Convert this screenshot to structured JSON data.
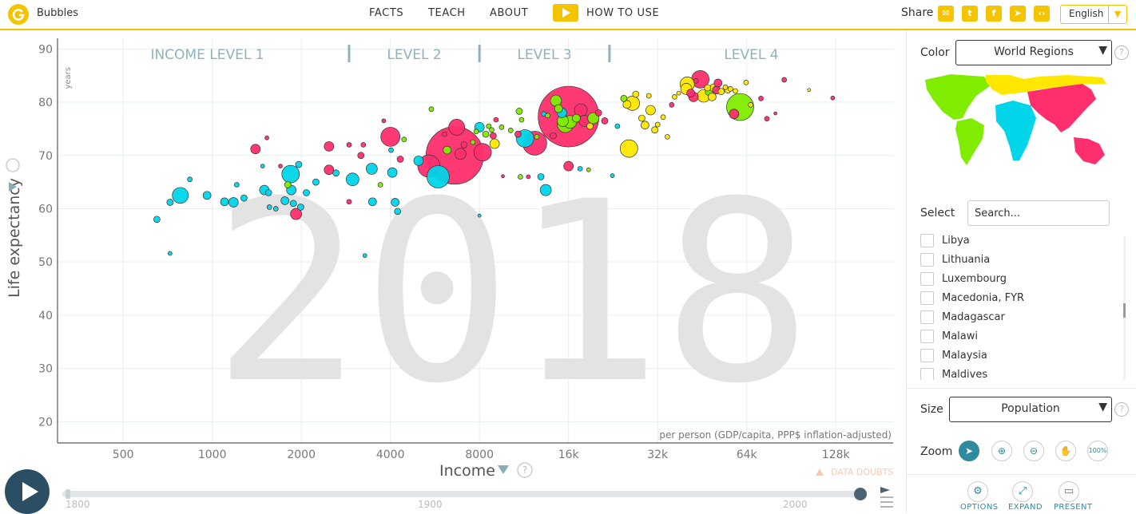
{
  "header": {
    "brand": "Bubbles",
    "nav": [
      "FACTS",
      "TEACH",
      "ABOUT"
    ],
    "how_to_use": "HOW TO USE",
    "share_label": "Share",
    "share_icons": [
      "mail-icon",
      "twitter-icon",
      "facebook-icon",
      "telegram-icon",
      "embed-icon"
    ],
    "language": "English"
  },
  "chart_data": {
    "type": "scatter",
    "year_watermark": "2018",
    "xlabel": "Income",
    "x_unit_note": "per person (GDP/capita, PPP$ inflation-adjusted)",
    "ylabel": "Life expectancy",
    "y_unit": "years",
    "x_scale": "log",
    "x_ticks": [
      500,
      1000,
      2000,
      4000,
      8000,
      16000,
      32000,
      64000,
      128000
    ],
    "x_tick_labels": [
      "500",
      "1000",
      "2000",
      "4000",
      "8000",
      "16k",
      "32k",
      "64k",
      "128k"
    ],
    "xlim": [
      300,
      200000
    ],
    "y_ticks": [
      20,
      30,
      40,
      50,
      60,
      70,
      80,
      90
    ],
    "ylim": [
      16,
      92
    ],
    "grid": true,
    "income_levels": [
      "INCOME LEVEL 1",
      "LEVEL 2",
      "LEVEL 3",
      "LEVEL 4"
    ],
    "income_level_bounds": [
      2900,
      8000,
      22000
    ],
    "region_colors": {
      "africa": "#00d5e9",
      "asia": "#ff2e6d",
      "americas": "#7fec00",
      "europe": "#ffe700"
    },
    "points": [
      {
        "x": 650,
        "y": 58,
        "r": 4,
        "c": "africa"
      },
      {
        "x": 720,
        "y": 51.6,
        "r": 2.5,
        "c": "africa"
      },
      {
        "x": 720,
        "y": 61.2,
        "r": 4,
        "c": "africa"
      },
      {
        "x": 780,
        "y": 62.5,
        "r": 10,
        "c": "africa"
      },
      {
        "x": 840,
        "y": 65.5,
        "r": 3,
        "c": "africa"
      },
      {
        "x": 960,
        "y": 62.5,
        "r": 5,
        "c": "africa"
      },
      {
        "x": 1100,
        "y": 61.3,
        "r": 5,
        "c": "africa"
      },
      {
        "x": 1180,
        "y": 61.2,
        "r": 6,
        "c": "africa"
      },
      {
        "x": 1210,
        "y": 64.5,
        "r": 3,
        "c": "africa"
      },
      {
        "x": 1280,
        "y": 62,
        "r": 4,
        "c": "africa"
      },
      {
        "x": 1400,
        "y": 71.2,
        "r": 6,
        "c": "asia"
      },
      {
        "x": 1480,
        "y": 68,
        "r": 2.5,
        "c": "africa"
      },
      {
        "x": 1500,
        "y": 63.5,
        "r": 6,
        "c": "africa"
      },
      {
        "x": 1530,
        "y": 73.3,
        "r": 2.5,
        "c": "asia"
      },
      {
        "x": 1550,
        "y": 63,
        "r": 4,
        "c": "africa"
      },
      {
        "x": 1560,
        "y": 60.3,
        "r": 3,
        "c": "africa"
      },
      {
        "x": 1640,
        "y": 60,
        "r": 3,
        "c": "africa"
      },
      {
        "x": 1700,
        "y": 68,
        "r": 2.5,
        "c": "asia"
      },
      {
        "x": 1760,
        "y": 61.5,
        "r": 5,
        "c": "africa"
      },
      {
        "x": 1800,
        "y": 64.5,
        "r": 4,
        "c": "americas"
      },
      {
        "x": 1840,
        "y": 66.5,
        "r": 11,
        "c": "africa"
      },
      {
        "x": 1850,
        "y": 63.5,
        "r": 6,
        "c": "africa"
      },
      {
        "x": 1880,
        "y": 61,
        "r": 4,
        "c": "africa"
      },
      {
        "x": 1920,
        "y": 59,
        "r": 7,
        "c": "asia"
      },
      {
        "x": 1960,
        "y": 68.3,
        "r": 4,
        "c": "africa"
      },
      {
        "x": 1990,
        "y": 60.3,
        "r": 4,
        "c": "africa"
      },
      {
        "x": 2080,
        "y": 63,
        "r": 4,
        "c": "africa"
      },
      {
        "x": 2240,
        "y": 65,
        "r": 4,
        "c": "africa"
      },
      {
        "x": 2480,
        "y": 71.7,
        "r": 6,
        "c": "asia"
      },
      {
        "x": 2480,
        "y": 67.3,
        "r": 6,
        "c": "asia"
      },
      {
        "x": 2620,
        "y": 66.7,
        "r": 4,
        "c": "africa"
      },
      {
        "x": 2900,
        "y": 72,
        "r": 3,
        "c": "asia"
      },
      {
        "x": 2900,
        "y": 61.3,
        "r": 3,
        "c": "asia"
      },
      {
        "x": 2980,
        "y": 65.5,
        "r": 8,
        "c": "africa"
      },
      {
        "x": 3180,
        "y": 70,
        "r": 4,
        "c": "asia"
      },
      {
        "x": 3240,
        "y": 72,
        "r": 3,
        "c": "asia"
      },
      {
        "x": 3280,
        "y": 51.2,
        "r": 2.5,
        "c": "africa"
      },
      {
        "x": 3460,
        "y": 67.5,
        "r": 7,
        "c": "africa"
      },
      {
        "x": 3480,
        "y": 61.3,
        "r": 5,
        "c": "africa"
      },
      {
        "x": 3700,
        "y": 64.5,
        "r": 3,
        "c": "americas"
      },
      {
        "x": 3800,
        "y": 76.5,
        "r": 2.5,
        "c": "asia"
      },
      {
        "x": 4000,
        "y": 73.5,
        "r": 12,
        "c": "asia"
      },
      {
        "x": 4020,
        "y": 71,
        "r": 3,
        "c": "africa"
      },
      {
        "x": 4060,
        "y": 66.8,
        "r": 6,
        "c": "africa"
      },
      {
        "x": 4150,
        "y": 61.2,
        "r": 5,
        "c": "africa"
      },
      {
        "x": 4230,
        "y": 59.5,
        "r": 4,
        "c": "africa"
      },
      {
        "x": 4320,
        "y": 69.3,
        "r": 4,
        "c": "asia"
      },
      {
        "x": 4450,
        "y": 73,
        "r": 3,
        "c": "americas"
      },
      {
        "x": 4980,
        "y": 69,
        "r": 6,
        "c": "africa"
      },
      {
        "x": 5400,
        "y": 68,
        "r": 14,
        "c": "asia"
      },
      {
        "x": 5500,
        "y": 78.7,
        "r": 3,
        "c": "americas"
      },
      {
        "x": 5800,
        "y": 66,
        "r": 14,
        "c": "africa"
      },
      {
        "x": 6100,
        "y": 74,
        "r": 3,
        "c": "asia"
      },
      {
        "x": 6220,
        "y": 71,
        "r": 5,
        "c": "americas"
      },
      {
        "x": 6600,
        "y": 70,
        "r": 36,
        "c": "asia"
      },
      {
        "x": 6700,
        "y": 75.3,
        "r": 10,
        "c": "asia"
      },
      {
        "x": 6900,
        "y": 70.3,
        "r": 7,
        "c": "asia"
      },
      {
        "x": 7100,
        "y": 72,
        "r": 4,
        "c": "asia"
      },
      {
        "x": 7600,
        "y": 72.5,
        "r": 3,
        "c": "americas"
      },
      {
        "x": 7800,
        "y": 74.5,
        "r": 3,
        "c": "americas"
      },
      {
        "x": 8000,
        "y": 75.3,
        "r": 6,
        "c": "africa"
      },
      {
        "x": 8000,
        "y": 58.7,
        "r": 2,
        "c": "africa"
      },
      {
        "x": 8200,
        "y": 70.6,
        "r": 11,
        "c": "asia"
      },
      {
        "x": 8400,
        "y": 74,
        "r": 4,
        "c": "americas"
      },
      {
        "x": 8600,
        "y": 75.5,
        "r": 3,
        "c": "americas"
      },
      {
        "x": 8800,
        "y": 74.8,
        "r": 3,
        "c": "americas"
      },
      {
        "x": 8900,
        "y": 73.7,
        "r": 4,
        "c": "asia"
      },
      {
        "x": 9000,
        "y": 72.2,
        "r": 6,
        "c": "europe"
      },
      {
        "x": 9100,
        "y": 76.7,
        "r": 3,
        "c": "asia"
      },
      {
        "x": 9500,
        "y": 75.3,
        "r": 3,
        "c": "americas"
      },
      {
        "x": 9600,
        "y": 66.1,
        "r": 2,
        "c": "asia"
      },
      {
        "x": 10200,
        "y": 74.7,
        "r": 3,
        "c": "americas"
      },
      {
        "x": 10800,
        "y": 74,
        "r": 4,
        "c": "asia"
      },
      {
        "x": 10900,
        "y": 78.3,
        "r": 4,
        "c": "americas"
      },
      {
        "x": 11000,
        "y": 66,
        "r": 3,
        "c": "americas"
      },
      {
        "x": 11100,
        "y": 76.7,
        "r": 3,
        "c": "americas"
      },
      {
        "x": 11400,
        "y": 73.2,
        "r": 11,
        "c": "africa"
      },
      {
        "x": 11700,
        "y": 66,
        "r": 2.5,
        "c": "asia"
      },
      {
        "x": 12300,
        "y": 72.3,
        "r": 15,
        "c": "asia"
      },
      {
        "x": 12500,
        "y": 73.5,
        "r": 3,
        "c": "americas"
      },
      {
        "x": 12900,
        "y": 66,
        "r": 4,
        "c": "africa"
      },
      {
        "x": 13200,
        "y": 77.8,
        "r": 3,
        "c": "africa"
      },
      {
        "x": 13400,
        "y": 63.5,
        "r": 7,
        "c": "africa"
      },
      {
        "x": 13600,
        "y": 77.5,
        "r": 3,
        "c": "americas"
      },
      {
        "x": 14200,
        "y": 73.7,
        "r": 4,
        "c": "asia"
      },
      {
        "x": 14500,
        "y": 80.3,
        "r": 7,
        "c": "americas"
      },
      {
        "x": 14800,
        "y": 78.8,
        "r": 5,
        "c": "americas"
      },
      {
        "x": 15200,
        "y": 78,
        "r": 6,
        "c": "africa"
      },
      {
        "x": 15300,
        "y": 76.5,
        "r": 7,
        "c": "americas"
      },
      {
        "x": 15600,
        "y": 75.8,
        "r": 10,
        "c": "americas"
      },
      {
        "x": 16000,
        "y": 77.3,
        "r": 38,
        "c": "asia"
      },
      {
        "x": 16000,
        "y": 68,
        "r": 6,
        "c": "asia"
      },
      {
        "x": 16200,
        "y": 76.3,
        "r": 8,
        "c": "americas"
      },
      {
        "x": 17000,
        "y": 77,
        "r": 5,
        "c": "americas"
      },
      {
        "x": 17500,
        "y": 67.5,
        "r": 3,
        "c": "africa"
      },
      {
        "x": 17600,
        "y": 78.5,
        "r": 8,
        "c": "asia"
      },
      {
        "x": 18100,
        "y": 76.5,
        "r": 7,
        "c": "asia"
      },
      {
        "x": 18700,
        "y": 67.3,
        "r": 2.5,
        "c": "americas"
      },
      {
        "x": 18900,
        "y": 75.5,
        "r": 4,
        "c": "europe"
      },
      {
        "x": 19400,
        "y": 77,
        "r": 7,
        "c": "americas"
      },
      {
        "x": 20200,
        "y": 78,
        "r": 4,
        "c": "asia"
      },
      {
        "x": 21200,
        "y": 76.5,
        "r": 4,
        "c": "asia"
      },
      {
        "x": 22500,
        "y": 66.2,
        "r": 2.5,
        "c": "africa"
      },
      {
        "x": 23400,
        "y": 75.5,
        "r": 3,
        "c": "africa"
      },
      {
        "x": 24600,
        "y": 80.7,
        "r": 4,
        "c": "americas"
      },
      {
        "x": 25200,
        "y": 79.6,
        "r": 5,
        "c": "europe"
      },
      {
        "x": 25600,
        "y": 71.3,
        "r": 11,
        "c": "europe"
      },
      {
        "x": 26300,
        "y": 79.8,
        "r": 9,
        "c": "europe"
      },
      {
        "x": 27000,
        "y": 81.5,
        "r": 4,
        "c": "europe"
      },
      {
        "x": 28300,
        "y": 77,
        "r": 4,
        "c": "europe"
      },
      {
        "x": 29000,
        "y": 75.7,
        "r": 5,
        "c": "europe"
      },
      {
        "x": 29900,
        "y": 81.2,
        "r": 3,
        "c": "europe"
      },
      {
        "x": 30300,
        "y": 78.5,
        "r": 6,
        "c": "europe"
      },
      {
        "x": 31300,
        "y": 74.8,
        "r": 4,
        "c": "europe"
      },
      {
        "x": 32000,
        "y": 75.8,
        "r": 3,
        "c": "europe"
      },
      {
        "x": 33400,
        "y": 77.2,
        "r": 3,
        "c": "europe"
      },
      {
        "x": 34500,
        "y": 73.5,
        "r": 3,
        "c": "europe"
      },
      {
        "x": 35700,
        "y": 79.5,
        "r": 3,
        "c": "asia"
      },
      {
        "x": 36500,
        "y": 81,
        "r": 3,
        "c": "europe"
      },
      {
        "x": 37700,
        "y": 81.7,
        "r": 2.5,
        "c": "europe"
      },
      {
        "x": 40000,
        "y": 82.5,
        "r": 7,
        "c": "europe"
      },
      {
        "x": 40300,
        "y": 83.4,
        "r": 9,
        "c": "europe"
      },
      {
        "x": 41400,
        "y": 81.7,
        "r": 5,
        "c": "asia"
      },
      {
        "x": 42300,
        "y": 81,
        "r": 6,
        "c": "asia"
      },
      {
        "x": 43100,
        "y": 84,
        "r": 3,
        "c": "asia"
      },
      {
        "x": 44600,
        "y": 84.3,
        "r": 11,
        "c": "asia"
      },
      {
        "x": 45800,
        "y": 81.2,
        "r": 8,
        "c": "europe"
      },
      {
        "x": 47200,
        "y": 82.7,
        "r": 4,
        "c": "europe"
      },
      {
        "x": 47800,
        "y": 82,
        "r": 5,
        "c": "americas"
      },
      {
        "x": 48900,
        "y": 81,
        "r": 5,
        "c": "europe"
      },
      {
        "x": 49600,
        "y": 82.7,
        "r": 5,
        "c": "europe"
      },
      {
        "x": 50600,
        "y": 82.3,
        "r": 5,
        "c": "asia"
      },
      {
        "x": 51200,
        "y": 83.6,
        "r": 5,
        "c": "asia"
      },
      {
        "x": 52500,
        "y": 82,
        "r": 4,
        "c": "europe"
      },
      {
        "x": 54200,
        "y": 82.8,
        "r": 3,
        "c": "europe"
      },
      {
        "x": 55200,
        "y": 82.3,
        "r": 4,
        "c": "europe"
      },
      {
        "x": 56400,
        "y": 82.5,
        "r": 3,
        "c": "europe"
      },
      {
        "x": 58000,
        "y": 77.8,
        "r": 6,
        "c": "asia"
      },
      {
        "x": 58600,
        "y": 82.1,
        "r": 3,
        "c": "europe"
      },
      {
        "x": 60800,
        "y": 79.1,
        "r": 17,
        "c": "americas"
      },
      {
        "x": 63700,
        "y": 83.7,
        "r": 3,
        "c": "europe"
      },
      {
        "x": 66000,
        "y": 79.5,
        "r": 3,
        "c": "europe"
      },
      {
        "x": 71500,
        "y": 80.7,
        "r": 3,
        "c": "asia"
      },
      {
        "x": 74900,
        "y": 76.9,
        "r": 3,
        "c": "asia"
      },
      {
        "x": 80000,
        "y": 77.9,
        "r": 2,
        "c": "asia"
      },
      {
        "x": 85700,
        "y": 84.2,
        "r": 3,
        "c": "asia"
      },
      {
        "x": 104000,
        "y": 82.3,
        "r": 2,
        "c": "europe"
      },
      {
        "x": 125000,
        "y": 80.8,
        "r": 2.5,
        "c": "asia"
      }
    ]
  },
  "data_doubts": "DATA DOUBTS",
  "timeline": {
    "year_labels": [
      "1800",
      "1900",
      "2000"
    ],
    "current_year": 2018
  },
  "panel": {
    "color_label": "Color",
    "color_value": "World Regions",
    "select_label": "Select",
    "search_placeholder": "Search...",
    "countries": [
      "Libya",
      "Lithuania",
      "Luxembourg",
      "Macedonia, FYR",
      "Madagascar",
      "Malawi",
      "Malaysia",
      "Maldives"
    ],
    "size_label": "Size",
    "size_value": "Population",
    "zoom_label": "Zoom",
    "zoom_tools": [
      "pointer-icon",
      "zoom-in-icon",
      "zoom-out-icon",
      "hand-icon",
      "zoom-100-icon"
    ],
    "zoom_100_text": "100%",
    "bottom_buttons": [
      "OPTIONS",
      "EXPAND",
      "PRESENT"
    ]
  }
}
